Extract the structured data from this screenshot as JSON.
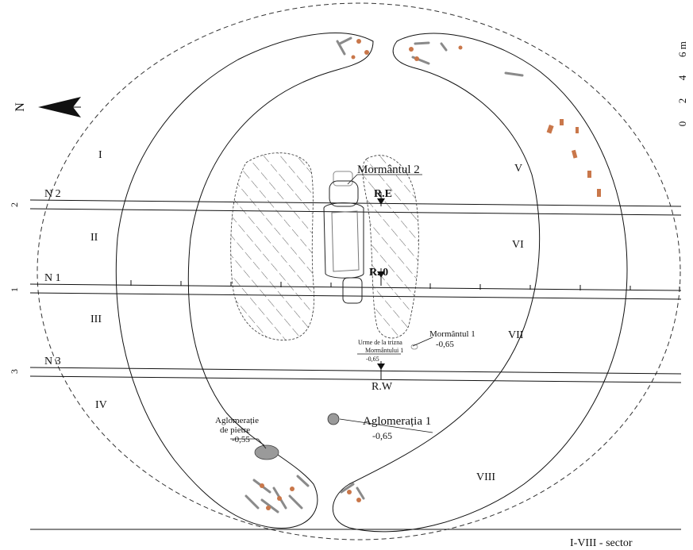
{
  "north_label": "N",
  "scale": {
    "ticks": [
      "0",
      "2",
      "4",
      "6 m"
    ]
  },
  "trenches": [
    {
      "name": "N 2",
      "number": "2"
    },
    {
      "name": "N 1",
      "number": "1"
    },
    {
      "name": "N 3",
      "number": "3"
    }
  ],
  "sectors": {
    "left": [
      "I",
      "II",
      "III",
      "IV"
    ],
    "right": [
      "V",
      "VI",
      "VII",
      "VIII"
    ]
  },
  "reference_points": {
    "east": "R.E",
    "zero": "R. 0",
    "west": "R.W"
  },
  "graves": {
    "grave2": {
      "label": "Mormântul 2"
    },
    "grave1": {
      "label": "Mormântul 1",
      "depth": "-0,65"
    }
  },
  "traces": {
    "line1": "Urme de la trizna",
    "line2": "Mormântului 1",
    "depth": "-0,65"
  },
  "stone_cluster": {
    "line1": "Aglomerație",
    "line2": "de pietre",
    "depth": "-0,55"
  },
  "cluster1": {
    "label": "Aglomerația 1",
    "depth": "-0,65"
  },
  "legend": "I-VIII - sector",
  "colors": {
    "line": "#111111",
    "stone": "#8a8a8a",
    "ochre": "#c9774a"
  }
}
